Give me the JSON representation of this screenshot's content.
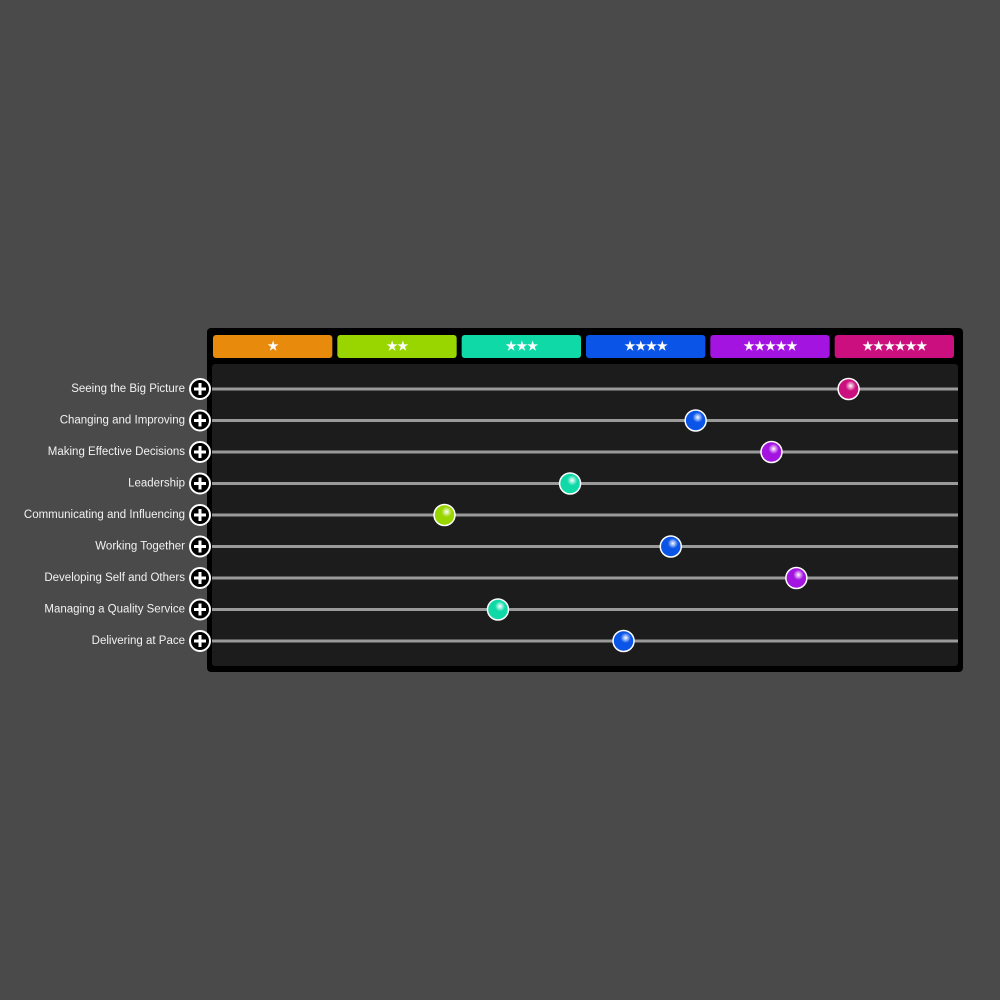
{
  "levels": [
    {
      "label": "★",
      "color": "#e88a0c"
    },
    {
      "label": "★★",
      "color": "#99d600"
    },
    {
      "label": "★★★",
      "color": "#0fd9a7"
    },
    {
      "label": "★★★★",
      "color": "#0a55e8"
    },
    {
      "label": "★★★★★",
      "color": "#a414e0"
    },
    {
      "label": "★★★★★★",
      "color": "#cc0f7e"
    }
  ],
  "rows": [
    {
      "label": "Seeing the Big Picture",
      "value": 5.12
    },
    {
      "label": "Changing and Improving",
      "value": 3.89
    },
    {
      "label": "Making Effective Decisions",
      "value": 4.5
    },
    {
      "label": "Leadership",
      "value": 2.88
    },
    {
      "label": "Communicating and Influencing",
      "value": 1.87
    },
    {
      "label": "Working Together",
      "value": 3.69
    },
    {
      "label": "Developing Self and Others",
      "value": 4.7
    },
    {
      "label": "Managing a Quality Service",
      "value": 2.3
    },
    {
      "label": "Delivering at Pace",
      "value": 3.31
    }
  ]
}
